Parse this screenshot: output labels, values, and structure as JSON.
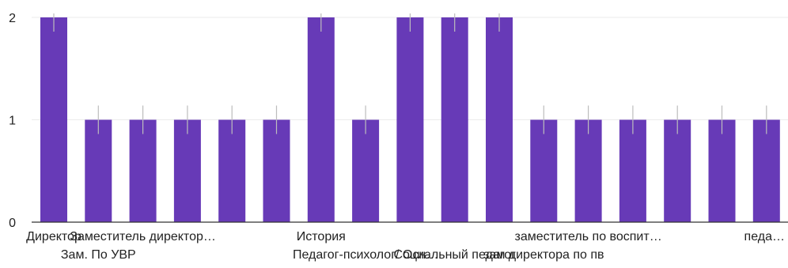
{
  "chart_data": {
    "type": "bar",
    "categories": [
      "Директор",
      "Зам. По УВР",
      "Заместитель директор…",
      "",
      "",
      "",
      "История",
      "Педагог-психолог/ Осн…",
      "",
      "Социальный педагог",
      "",
      "зам директора по пв",
      "заместитель по воспит…",
      "",
      "",
      "",
      "педа…"
    ],
    "values": [
      2,
      1,
      1,
      1,
      1,
      1,
      2,
      1,
      2,
      2,
      2,
      1,
      1,
      1,
      1,
      1,
      1
    ],
    "yticks": [
      "0",
      "1",
      "2"
    ],
    "ylim": [
      0,
      2
    ],
    "grid": true,
    "bar_color": "#673ab7",
    "error_bar_color": "#bdbdbd",
    "grid_color": "#ebebeb",
    "axis_color": "#333333",
    "title": "",
    "xlabel": "",
    "ylabel": ""
  }
}
